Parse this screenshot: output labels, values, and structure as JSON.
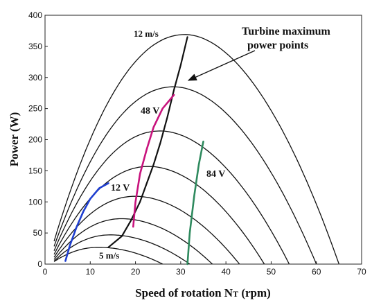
{
  "chart_data": {
    "type": "line",
    "title": "",
    "xlabel": "Speed of rotation N",
    "xlabel_sub": "T",
    "xlabel_unit": " (rpm)",
    "ylabel": "Power (W)",
    "xlim": [
      0,
      70
    ],
    "ylim": [
      0,
      400
    ],
    "xticks": [
      "0",
      "10",
      "20",
      "30",
      "40",
      "50",
      "60",
      "70"
    ],
    "yticks": [
      "0",
      "50",
      "100",
      "150",
      "200",
      "250",
      "300",
      "350",
      "400"
    ],
    "grid": false,
    "turbine_curves": [
      {
        "peak_x": 31,
        "peak_y": 369,
        "end_x": 65
      },
      {
        "peak_x": 28.5,
        "peak_y": 285,
        "end_x": 60
      },
      {
        "peak_x": 25.5,
        "peak_y": 214,
        "end_x": 54
      },
      {
        "peak_x": 23,
        "peak_y": 157,
        "end_x": 48.5
      },
      {
        "peak_x": 20,
        "peak_y": 109,
        "end_x": 43
      },
      {
        "peak_x": 17,
        "peak_y": 73,
        "end_x": 37
      },
      {
        "peak_x": 14.5,
        "peak_y": 47,
        "end_x": 32
      },
      {
        "peak_x": 12,
        "peak_y": 27,
        "end_x": 26
      }
    ],
    "series": [
      {
        "name": "12 V",
        "color": "#1f3fd0",
        "x": [
          4.5,
          5.5,
          7,
          8.5,
          10,
          12,
          14
        ],
        "y": [
          5,
          30,
          60,
          85,
          105,
          122,
          130
        ]
      },
      {
        "name": "48 V",
        "color": "#c8137d",
        "x": [
          19.5,
          20,
          21,
          22.5,
          24,
          26,
          28.5
        ],
        "y": [
          60,
          100,
          145,
          185,
          220,
          250,
          272
        ]
      },
      {
        "name": "84 V",
        "color": "#2e8a5e",
        "x": [
          31.5,
          32,
          33,
          34,
          35
        ],
        "y": [
          0,
          50,
          110,
          160,
          197
        ]
      }
    ],
    "mpp_line": {
      "name": "Turbine maximum power points",
      "color": "#111111",
      "x": [
        14,
        17,
        19,
        21,
        22.5,
        24,
        25.5,
        27,
        28.5,
        30,
        31.5
      ],
      "y": [
        27,
        45,
        70,
        100,
        130,
        160,
        195,
        235,
        280,
        320,
        365
      ]
    },
    "annotations": {
      "speed_top": "12 m/s",
      "speed_bottom": "5 m/s",
      "mpp_label_line1": "Turbine maximum",
      "mpp_label_line2": "power points",
      "v12": "12 V",
      "v48": "48 V",
      "v84": "84 V"
    }
  }
}
